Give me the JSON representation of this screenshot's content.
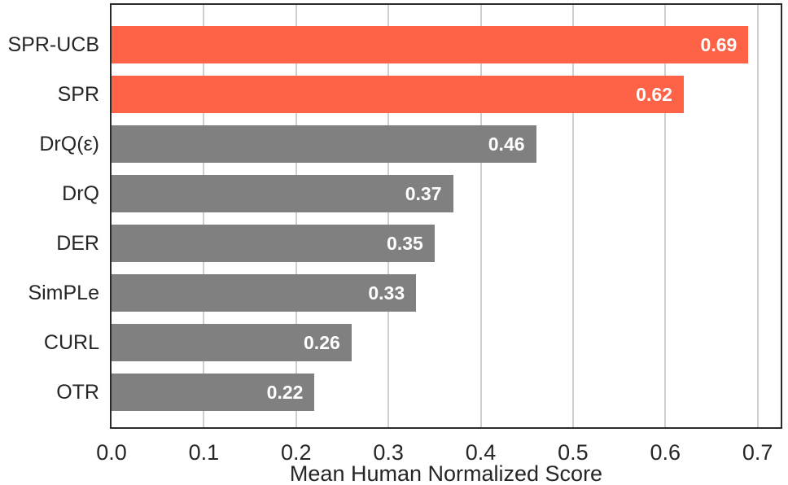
{
  "chart_data": {
    "type": "bar",
    "orientation": "horizontal",
    "title": "",
    "xlabel": "Mean Human Normalized Score",
    "ylabel": "",
    "categories": [
      "SPR-UCB",
      "SPR",
      "DrQ(ε)",
      "DrQ",
      "DER",
      "SimPLe",
      "CURL",
      "OTR"
    ],
    "values": [
      0.69,
      0.62,
      0.46,
      0.37,
      0.35,
      0.33,
      0.26,
      0.22
    ],
    "value_labels": [
      "0.69",
      "0.62",
      "0.46",
      "0.37",
      "0.35",
      "0.33",
      "0.26",
      "0.22"
    ],
    "bar_colors": [
      "#FF6347",
      "#FF6347",
      "#808080",
      "#808080",
      "#808080",
      "#808080",
      "#808080",
      "#808080"
    ],
    "highlight_color": "#FF6347",
    "default_color": "#808080",
    "x_ticks": [
      "0.0",
      "0.1",
      "0.2",
      "0.3",
      "0.4",
      "0.5",
      "0.6",
      "0.7"
    ],
    "x_tick_values": [
      0.0,
      0.1,
      0.2,
      0.3,
      0.4,
      0.5,
      0.6,
      0.7
    ],
    "xlim": [
      0.0,
      0.725
    ],
    "grid": "vertical",
    "gridline_color": "#cfcfcf",
    "frame_color": "#2b2b2b",
    "text_color": "#262626",
    "value_text_color": "#ffffff",
    "legend": null
  }
}
